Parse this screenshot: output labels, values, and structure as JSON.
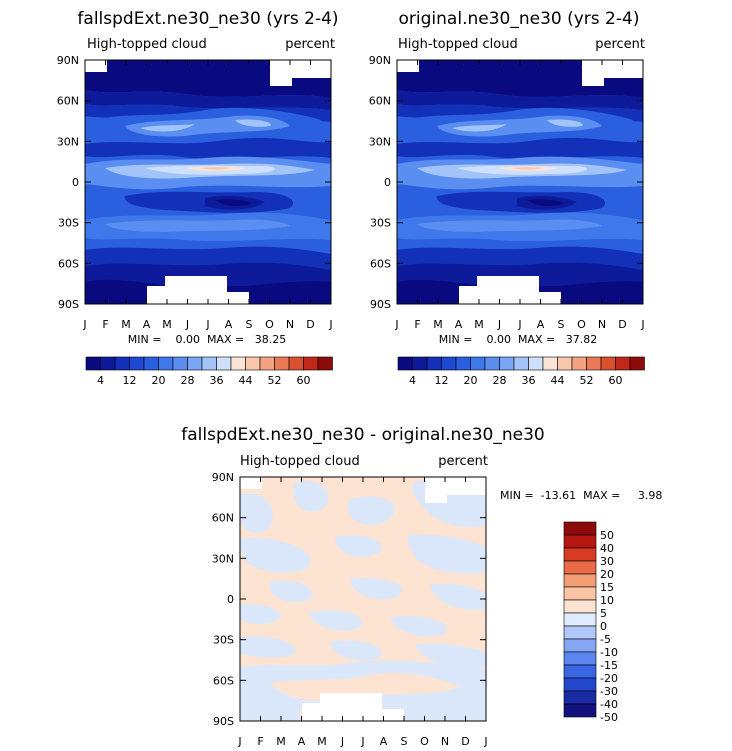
{
  "chart_data": [
    {
      "type": "heatmap",
      "title": "fallspdExt.ne30_ne30 (yrs 2-4)",
      "subtitle_left": "High-topped cloud",
      "subtitle_right": "percent",
      "x_ticks": [
        "J",
        "F",
        "M",
        "A",
        "M",
        "J",
        "J",
        "A",
        "S",
        "O",
        "N",
        "D",
        "J"
      ],
      "y_ticks": [
        "90N",
        "60N",
        "30N",
        "0",
        "30S",
        "60S",
        "90S"
      ],
      "stats_text": "MIN =    0.00  MAX =   38.25",
      "colorbar_labels": [
        "4",
        "12",
        "20",
        "28",
        "36",
        "44",
        "52",
        "60"
      ],
      "colorbar_levels": [
        0,
        4,
        8,
        12,
        16,
        20,
        24,
        28,
        32,
        36,
        40,
        44,
        48,
        52,
        56,
        60,
        64
      ]
    },
    {
      "type": "heatmap",
      "title": "original.ne30_ne30 (yrs 2-4)",
      "subtitle_left": "High-topped cloud",
      "subtitle_right": "percent",
      "x_ticks": [
        "J",
        "F",
        "M",
        "A",
        "M",
        "J",
        "J",
        "A",
        "S",
        "O",
        "N",
        "D",
        "J"
      ],
      "y_ticks": [
        "90N",
        "60N",
        "30N",
        "0",
        "30S",
        "60S",
        "90S"
      ],
      "stats_text": "MIN =    0.00  MAX =   37.82",
      "colorbar_labels": [
        "4",
        "12",
        "20",
        "28",
        "36",
        "44",
        "52",
        "60"
      ],
      "colorbar_levels": [
        0,
        4,
        8,
        12,
        16,
        20,
        24,
        28,
        32,
        36,
        40,
        44,
        48,
        52,
        56,
        60,
        64
      ]
    },
    {
      "type": "heatmap",
      "title": "fallspdExt.ne30_ne30 - original.ne30_ne30",
      "subtitle_left": "High-topped cloud",
      "subtitle_right": "percent",
      "x_ticks": [
        "J",
        "F",
        "M",
        "A",
        "M",
        "J",
        "J",
        "A",
        "S",
        "O",
        "N",
        "D",
        "J"
      ],
      "y_ticks": [
        "90N",
        "60N",
        "30N",
        "0",
        "30S",
        "60S",
        "90S"
      ],
      "stats_text": "MIN =  -13.61  MAX =     3.98",
      "colorbar_labels": [
        "50",
        "40",
        "30",
        "20",
        "15",
        "10",
        "5",
        "0",
        "-5",
        "-10",
        "-15",
        "-20",
        "-30",
        "-40",
        "-50"
      ],
      "colorbar_levels": [
        -50,
        -40,
        -30,
        -20,
        -15,
        -10,
        -5,
        0,
        5,
        10,
        15,
        20,
        30,
        40,
        50
      ]
    }
  ],
  "colors": {
    "seq_scale": [
      "#0a0a80",
      "#0d1b9a",
      "#1230b8",
      "#1c48d2",
      "#2a5fe0",
      "#3f78ea",
      "#5a8ef0",
      "#7aa6f5",
      "#a3c4f9",
      "#cfe0fc",
      "#fbe4d6",
      "#f9c7ac",
      "#f3a380",
      "#ea7a56",
      "#d9502f",
      "#c2281a",
      "#8e0b0b"
    ],
    "diff_scale": [
      "#11127d",
      "#1a2ba5",
      "#2348cc",
      "#3a66e3",
      "#5b86ef",
      "#85a6f5",
      "#b2c8f9",
      "#e0ecfd",
      "#fde3d2",
      "#f9c3a4",
      "#f39e76",
      "#e96b47",
      "#d83a22",
      "#b5160f",
      "#8c0a0a"
    ],
    "diff_fill_blue": "#dbe8fb",
    "diff_fill_peach": "#fde3d2"
  }
}
